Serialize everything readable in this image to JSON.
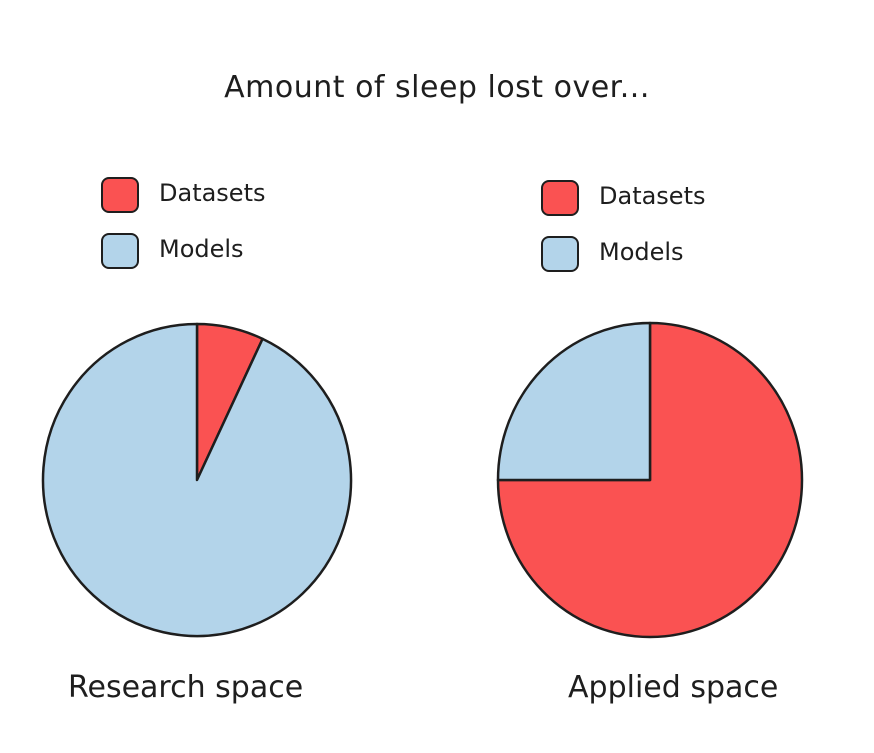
{
  "title": "Amount of sleep lost over...",
  "colors": {
    "datasets": "#fa5252",
    "models": "#b3d4ea",
    "stroke": "#1e1e1e"
  },
  "chart_data": [
    {
      "type": "pie",
      "title": "Amount of sleep lost over...",
      "caption": "Research space",
      "legend": [
        "Datasets",
        "Models"
      ],
      "legend_placement": "top-left",
      "slices": [
        {
          "name": "Datasets",
          "value": 7,
          "color": "#fa5252"
        },
        {
          "name": "Models",
          "value": 93,
          "color": "#b3d4ea"
        }
      ]
    },
    {
      "type": "pie",
      "title": "Amount of sleep lost over...",
      "caption": "Applied space",
      "legend": [
        "Datasets",
        "Models"
      ],
      "legend_placement": "top-right",
      "slices": [
        {
          "name": "Datasets",
          "value": 75,
          "color": "#fa5252"
        },
        {
          "name": "Models",
          "value": 25,
          "color": "#b3d4ea"
        }
      ]
    }
  ]
}
